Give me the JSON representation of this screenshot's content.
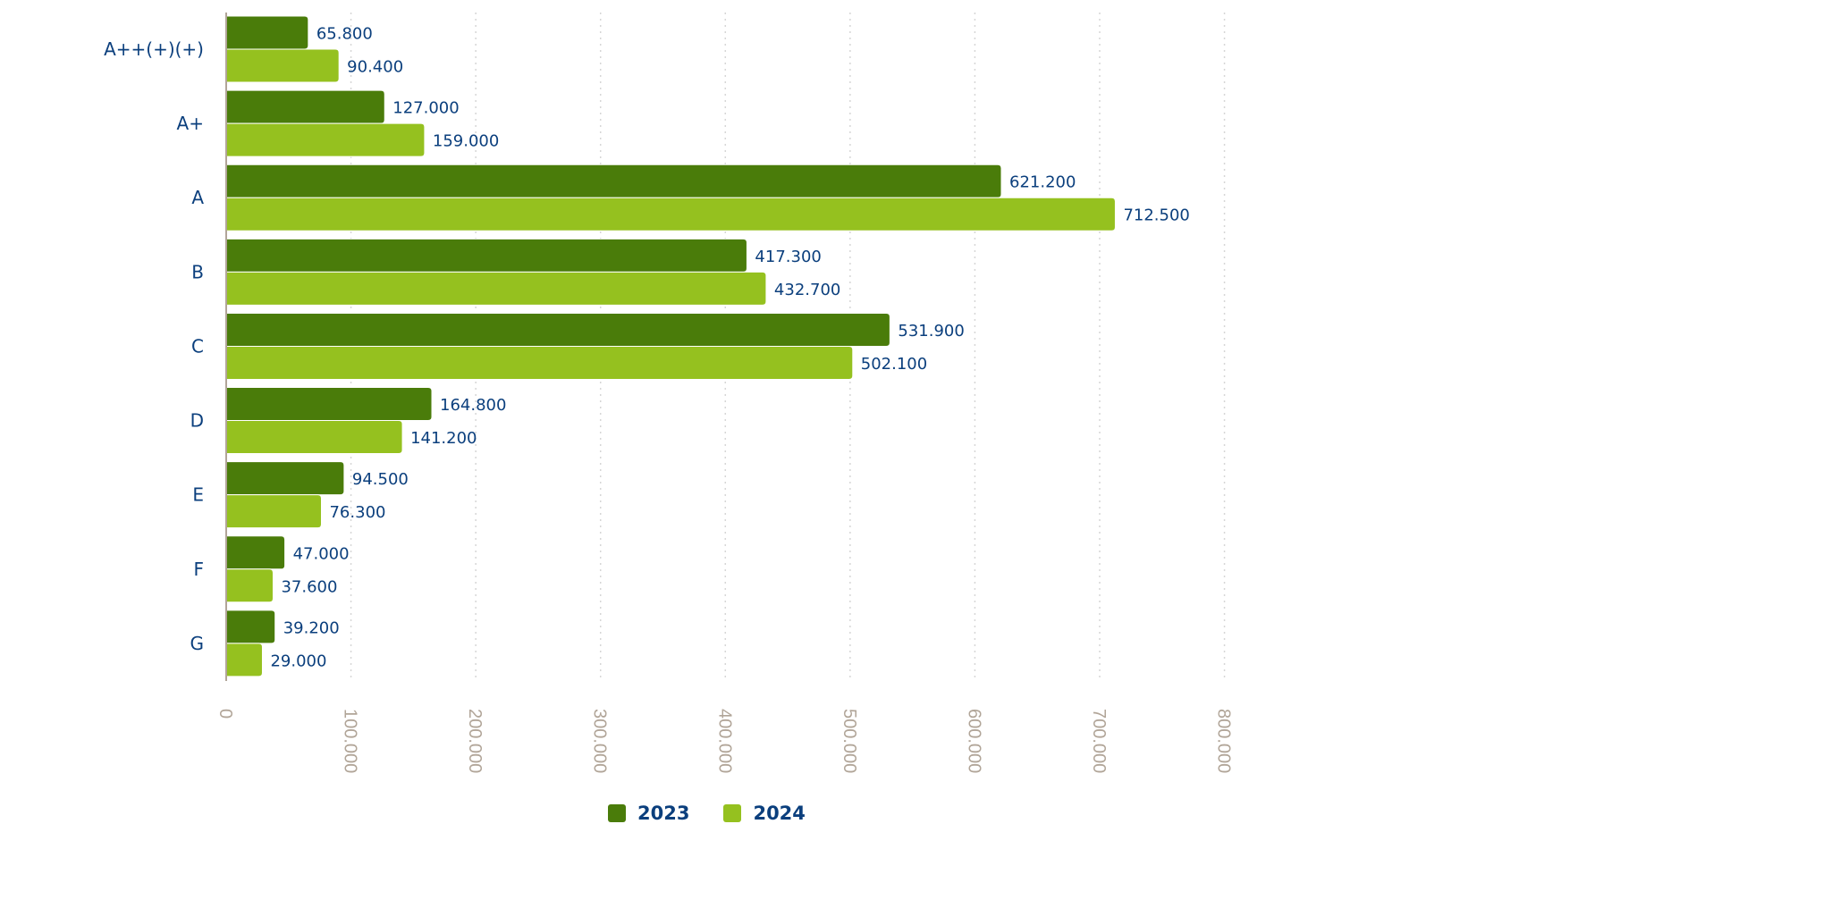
{
  "chart_data": {
    "type": "bar",
    "orientation": "horizontal",
    "title": "",
    "xlabel": "",
    "ylabel": "",
    "categories": [
      "A++(+)(+)",
      "A+",
      "A",
      "B",
      "C",
      "D",
      "E",
      "F",
      "G"
    ],
    "series": [
      {
        "name": "2023",
        "color": "#4a7c0a",
        "values": [
          65800,
          127000,
          621200,
          417300,
          531900,
          164800,
          94500,
          47000,
          39200
        ],
        "labels": [
          "65.800",
          "127.000",
          "621.200",
          "417.300",
          "531.900",
          "164.800",
          "94.500",
          "47.000",
          "39.200"
        ]
      },
      {
        "name": "2024",
        "color": "#95c11f",
        "values": [
          90400,
          159000,
          712500,
          432700,
          502100,
          141200,
          76300,
          37600,
          29000
        ],
        "labels": [
          "90.400",
          "159.000",
          "712.500",
          "432.700",
          "502.100",
          "141.200",
          "76.300",
          "37.600",
          "29.000"
        ]
      }
    ],
    "xlim": [
      0,
      800000
    ],
    "xticks": [
      0,
      100000,
      200000,
      300000,
      400000,
      500000,
      600000,
      700000,
      800000
    ],
    "xtick_labels": [
      "0",
      "100.000",
      "200.000",
      "300.000",
      "400.000",
      "500.000",
      "600.000",
      "700.000",
      "800.000"
    ],
    "grid": "vertical dotted",
    "legend_position": "bottom"
  },
  "legend": {
    "items": [
      {
        "label": "2023",
        "color": "#4a7c0a"
      },
      {
        "label": "2024",
        "color": "#95c11f"
      }
    ]
  }
}
